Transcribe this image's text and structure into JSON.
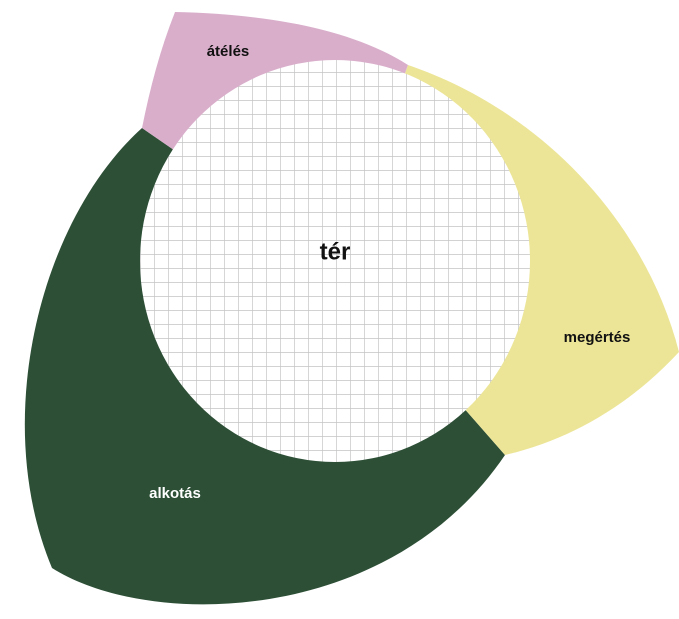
{
  "nodes": [
    {
      "label": "tér"
    },
    {
      "label": "átélés"
    },
    {
      "label": "megértés"
    },
    {
      "label": "alkotás"
    }
  ]
}
